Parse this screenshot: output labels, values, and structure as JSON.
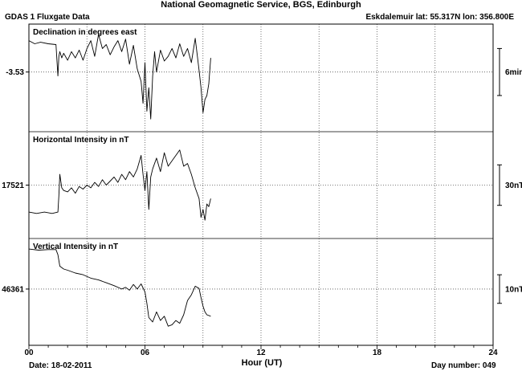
{
  "header": {
    "title": "National Geomagnetic Service, BGS, Edinburgh",
    "subtitle": "GDAS 1 Fluxgate Data",
    "station": "Eskdalemuir  lat: 55.317N lon: 356.800E"
  },
  "footer": {
    "date": "Date: 18-02-2011",
    "day_number": "Day number:  049"
  },
  "chart_data": {
    "type": "line",
    "xlabel": "Hour (UT)",
    "xlim": [
      0,
      24
    ],
    "x_ticks": [
      0,
      6,
      12,
      18,
      24
    ],
    "x_tick_labels": [
      "00",
      "06",
      "12",
      "18",
      "24"
    ],
    "grid": true,
    "line_color": "#000000",
    "panels": [
      {
        "title": "Declination in degrees east",
        "reference_label": "-3.53",
        "reference_value": -3.53,
        "units": "min",
        "scale_label": "6min",
        "scale_size": 6,
        "ylim": [
          -7,
          5.5
        ],
        "x": [
          0,
          0.3,
          0.6,
          1.0,
          1.4,
          1.5,
          1.55,
          1.6,
          1.7,
          1.8,
          2.0,
          2.2,
          2.4,
          2.6,
          2.8,
          3.0,
          3.2,
          3.4,
          3.6,
          3.8,
          4.0,
          4.2,
          4.4,
          4.6,
          4.8,
          5.0,
          5.2,
          5.4,
          5.6,
          5.8,
          5.9,
          6.0,
          6.1,
          6.2,
          6.3,
          6.4,
          6.5,
          6.6,
          6.8,
          7.0,
          7.2,
          7.4,
          7.6,
          7.8,
          8.0,
          8.2,
          8.4,
          8.6,
          8.8,
          8.9,
          9.0,
          9.1,
          9.2,
          9.3,
          9.4
        ],
        "y": [
          4.0,
          3.6,
          3.8,
          3.6,
          3.5,
          -0.5,
          2.0,
          2.6,
          1.8,
          2.4,
          1.5,
          2.6,
          1.8,
          2.8,
          1.5,
          3.0,
          4.0,
          2.0,
          4.8,
          3.0,
          3.5,
          2.2,
          3.2,
          4.0,
          2.6,
          4.2,
          1.0,
          3.4,
          0.4,
          -1.2,
          -4.0,
          1.2,
          -5.0,
          -2.0,
          -6.0,
          -0.5,
          2.6,
          0.0,
          2.8,
          1.4,
          2.0,
          3.0,
          1.8,
          3.6,
          2.0,
          3.0,
          1.2,
          4.3,
          0.2,
          -2.0,
          -5.2,
          -3.5,
          -3.0,
          -1.5,
          1.8
        ]
      },
      {
        "title": "Horizontal Intensity in nT",
        "reference_label": "17521",
        "reference_value": 17521,
        "units": "nT",
        "scale_label": "30nT",
        "scale_size": 30,
        "ylim": [
          -36,
          36
        ],
        "x": [
          0,
          0.4,
          0.8,
          1.2,
          1.5,
          1.55,
          1.6,
          1.7,
          1.8,
          2.0,
          2.2,
          2.4,
          2.6,
          2.8,
          3.0,
          3.2,
          3.4,
          3.6,
          3.8,
          4.0,
          4.2,
          4.4,
          4.6,
          4.8,
          5.0,
          5.2,
          5.4,
          5.6,
          5.8,
          5.9,
          6.0,
          6.1,
          6.2,
          6.3,
          6.4,
          6.6,
          6.8,
          7.0,
          7.2,
          7.4,
          7.6,
          7.8,
          8.0,
          8.2,
          8.4,
          8.6,
          8.8,
          8.9,
          9.0,
          9.1,
          9.2,
          9.3,
          9.4
        ],
        "y": [
          -20,
          -21,
          -20,
          -21,
          -20,
          -8,
          8,
          -2,
          -4,
          -5,
          -2,
          -6,
          -1,
          -3,
          0,
          -2,
          2,
          -1,
          4,
          0,
          3,
          6,
          2,
          8,
          4,
          10,
          6,
          12,
          22,
          8,
          -4,
          10,
          -18,
          6,
          12,
          20,
          10,
          24,
          14,
          18,
          22,
          26,
          14,
          16,
          8,
          -2,
          -10,
          -24,
          -18,
          -26,
          -14,
          -16,
          -10
        ]
      },
      {
        "title": "Vertical Intensity in nT",
        "reference_label": "46361",
        "reference_value": 46361,
        "units": "nT",
        "scale_label": "10nT",
        "scale_size": 10,
        "ylim": [
          -18,
          16
        ],
        "x": [
          0,
          0.5,
          1.0,
          1.4,
          1.5,
          1.6,
          1.8,
          2.0,
          2.4,
          2.8,
          3.2,
          3.6,
          4.0,
          4.4,
          4.8,
          5.0,
          5.2,
          5.4,
          5.6,
          5.8,
          6.0,
          6.1,
          6.2,
          6.4,
          6.6,
          6.8,
          7.0,
          7.2,
          7.4,
          7.6,
          7.8,
          8.0,
          8.2,
          8.4,
          8.6,
          8.8,
          8.9,
          9.0,
          9.1,
          9.2,
          9.4
        ],
        "y": [
          14.0,
          13.6,
          13.8,
          13.8,
          12.0,
          8.0,
          7.0,
          6.6,
          5.6,
          5.0,
          3.8,
          3.2,
          2.2,
          1.2,
          0.0,
          0.6,
          -0.4,
          1.6,
          0.0,
          1.8,
          -1.0,
          -5.0,
          -10.0,
          -11.5,
          -8.0,
          -11.0,
          -9.5,
          -13.0,
          -12.5,
          -11.0,
          -12.0,
          -9.0,
          -4.0,
          -2.0,
          1.0,
          0.2,
          -3.0,
          -6.0,
          -8.0,
          -9.0,
          -9.5
        ]
      }
    ]
  }
}
